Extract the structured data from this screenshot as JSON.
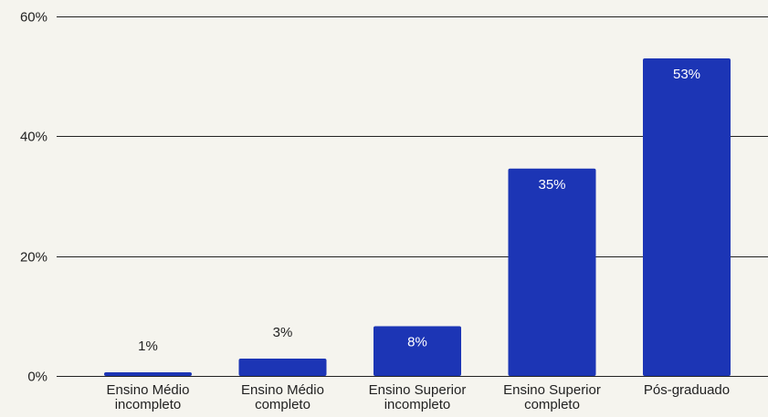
{
  "chart_data": {
    "type": "bar",
    "title": "",
    "xlabel": "",
    "ylabel": "",
    "categories": [
      [
        "Ensino Médio",
        "incompleto"
      ],
      [
        "Ensino Médio",
        "completo"
      ],
      [
        "Ensino Superior",
        "incompleto"
      ],
      [
        "Ensino Superior",
        "completo"
      ],
      [
        "Pós-graduado"
      ]
    ],
    "values": [
      0.6,
      2.9,
      8.3,
      34.6,
      53.0
    ],
    "data_labels": [
      "1%",
      "3%",
      "8%",
      "35%",
      "53%"
    ],
    "ylim": [
      0,
      60
    ],
    "yticks": [
      {
        "value": 0,
        "label": "0%"
      },
      {
        "value": 20,
        "label": "20%"
      },
      {
        "value": 40,
        "label": "40%"
      },
      {
        "value": 60,
        "label": "60%"
      }
    ],
    "grid": true,
    "legend": "none",
    "colors": {
      "bar": "#1c35b5",
      "label_inside": "#ffffff",
      "label_outside": "#222222",
      "gridline": "#222222",
      "background": "#f5f4ee"
    }
  }
}
